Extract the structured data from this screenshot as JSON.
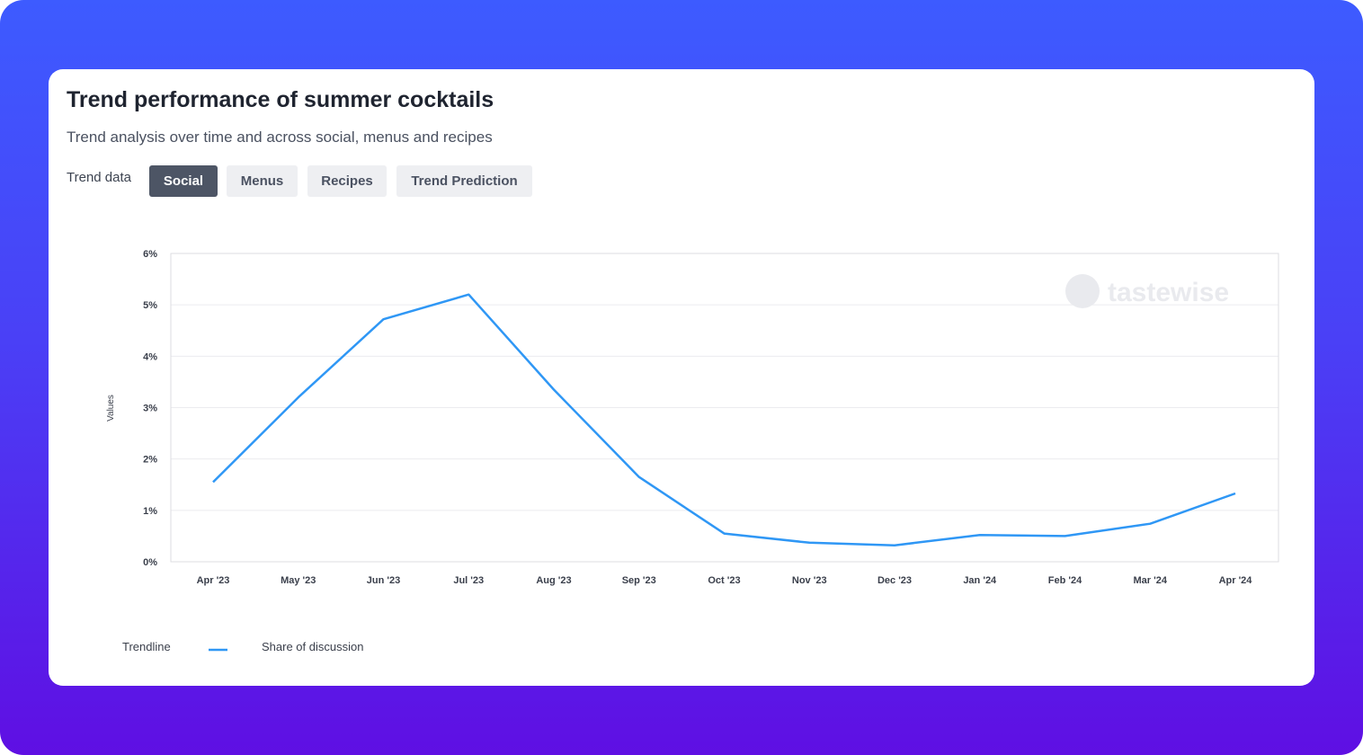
{
  "card": {
    "title": "Trend performance of summer cocktails",
    "subtitle": "Trend analysis over time and across social, menus and recipes",
    "trend_label": "Trend data",
    "tabs": [
      {
        "label": "Social",
        "active": true
      },
      {
        "label": "Menus",
        "active": false
      },
      {
        "label": "Recipes",
        "active": false
      },
      {
        "label": "Trend Prediction",
        "active": false
      }
    ]
  },
  "watermark": "tastewise",
  "legend": {
    "title": "Trendline",
    "series_label": "Share of discussion"
  },
  "colors": {
    "line": "#2f97f5",
    "active_tab": "#4d5565",
    "background_top": "#3d5bff",
    "background_bottom": "#5f0fe3"
  },
  "chart_data": {
    "type": "line",
    "ylabel": "Values",
    "xlabel": "",
    "ylim": [
      0,
      6
    ],
    "yticks": [
      "0%",
      "1%",
      "2%",
      "3%",
      "4%",
      "5%",
      "6%"
    ],
    "grid": true,
    "categories": [
      "Apr '23",
      "May '23",
      "Jun '23",
      "Jul '23",
      "Aug '23",
      "Sep '23",
      "Oct '23",
      "Nov '23",
      "Dec '23",
      "Jan '24",
      "Feb '24",
      "Mar '24",
      "Apr '24"
    ],
    "series": [
      {
        "name": "Share of discussion",
        "values": [
          1.55,
          3.2,
          4.72,
          5.2,
          3.35,
          1.65,
          0.55,
          0.37,
          0.32,
          0.52,
          0.5,
          0.74,
          1.33
        ]
      }
    ]
  }
}
